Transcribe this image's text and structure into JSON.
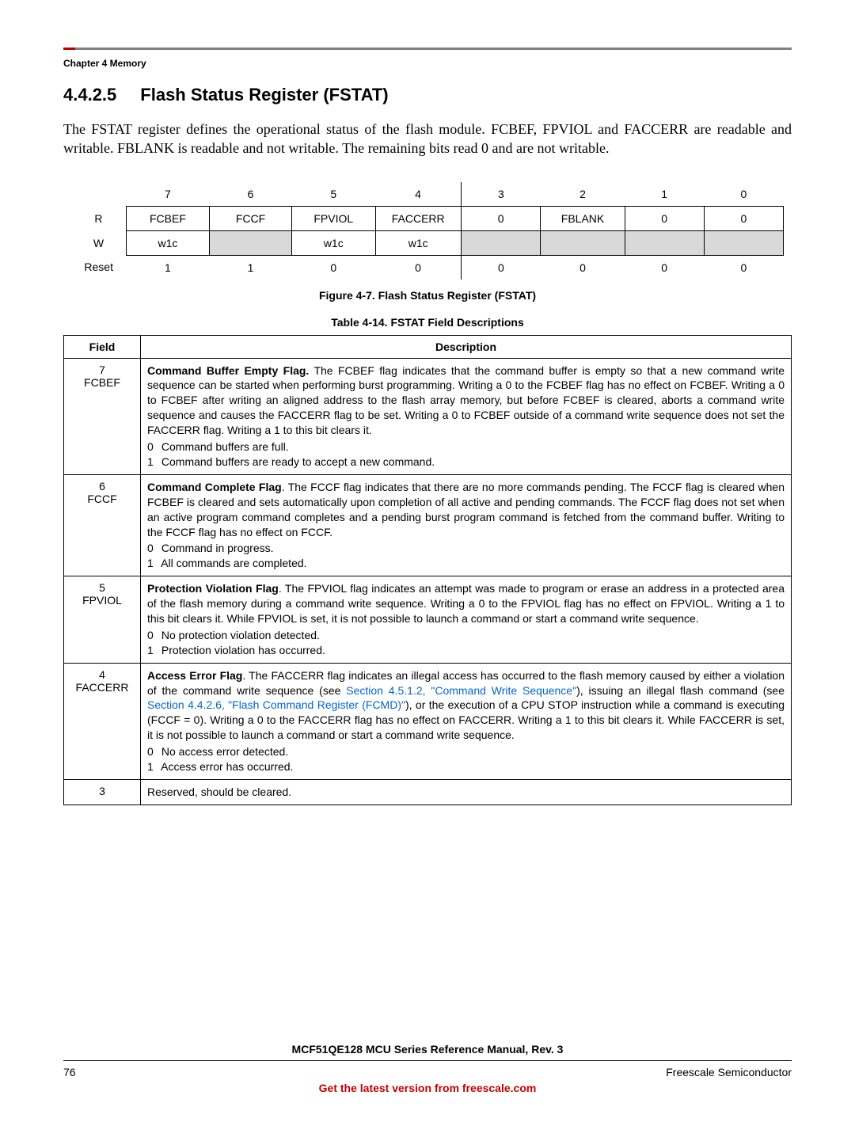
{
  "header": {
    "chapter_label": "Chapter 4 Memory"
  },
  "section": {
    "number": "4.4.2.5",
    "title": "Flash Status Register (FSTAT)"
  },
  "intro_paragraph": "The FSTAT register defines the operational status of the flash module. FCBEF, FPVIOL and FACCERR are readable and writable. FBLANK is readable and not writable. The remaining bits read 0 and are not writable.",
  "register": {
    "bit_numbers": [
      "7",
      "6",
      "5",
      "4",
      "3",
      "2",
      "1",
      "0"
    ],
    "row_labels": {
      "r": "R",
      "w": "W",
      "reset": "Reset"
    },
    "read_row": [
      "FCBEF",
      "FCCF",
      "FPVIOL",
      "FACCERR",
      "0",
      "FBLANK",
      "0",
      "0"
    ],
    "write_row": [
      "w1c",
      "",
      "w1c",
      "w1c",
      "",
      "",
      "",
      ""
    ],
    "write_shaded": [
      false,
      true,
      false,
      false,
      true,
      true,
      true,
      true
    ],
    "reset_row": [
      "1",
      "1",
      "0",
      "0",
      "0",
      "0",
      "0",
      "0"
    ]
  },
  "figure_caption": "Figure 4-7. Flash Status Register (FSTAT)",
  "table_caption": "Table 4-14. FSTAT Field Descriptions",
  "desc_table": {
    "headers": {
      "field": "Field",
      "description": "Description"
    },
    "rows": [
      {
        "field_num": "7",
        "field_name": "FCBEF",
        "bold_lead": "Command Buffer Empty Flag.",
        "desc_text": " The FCBEF flag indicates that the command buffer is empty so that a new command write sequence can be started when performing burst programming. Writing a 0 to the FCBEF flag has no effect on FCBEF. Writing a 0 to FCBEF after writing an aligned address to the flash array memory, but before FCBEF is cleared, aborts a command write sequence and causes the FACCERR flag to be set. Writing a 0 to FCBEF outside of a command write sequence does not set the FACCERR flag. Writing a 1 to this bit clears it.",
        "bits": [
          {
            "n": "0",
            "t": "Command buffers are full."
          },
          {
            "n": "1",
            "t": "Command buffers are ready to accept a new command."
          }
        ]
      },
      {
        "field_num": "6",
        "field_name": "FCCF",
        "bold_lead": "Command Complete Flag",
        "desc_text": ". The FCCF flag indicates that there are no more commands pending. The FCCF flag is cleared when FCBEF is cleared and sets automatically upon completion of all active and pending commands. The FCCF flag does not set when an active program command completes and a pending burst program command is fetched from the command buffer. Writing to the FCCF flag has no effect on FCCF.",
        "bits": [
          {
            "n": "0",
            "t": "Command in progress."
          },
          {
            "n": "1",
            "t": "All commands are completed."
          }
        ]
      },
      {
        "field_num": "5",
        "field_name": "FPVIOL",
        "bold_lead": "Protection Violation Flag",
        "desc_text": ". The FPVIOL flag indicates an attempt was made to program or erase an address in a protected area of the flash memory during a command write sequence. Writing a 0 to the FPVIOL flag has no effect on FPVIOL. Writing a 1 to this bit clears it. While FPVIOL is set, it is not possible to launch a command or start a command write sequence.",
        "bits": [
          {
            "n": "0",
            "t": "No protection violation detected."
          },
          {
            "n": "1",
            "t": "Protection violation has occurred."
          }
        ]
      },
      {
        "field_num": "4",
        "field_name": "FACCERR",
        "bold_lead": "Access Error Flag",
        "desc_text_pre": ". The FACCERR flag indicates an illegal access has occurred to the flash memory caused by either a violation of the command write sequence (see ",
        "link1": "Section 4.5.1.2, \"Command Write Sequence\"",
        "desc_text_mid": "), issuing an illegal flash command (see ",
        "link2": "Section 4.4.2.6, \"Flash Command Register (FCMD)\"",
        "desc_text_post": "), or the execution of a CPU STOP instruction while a command is executing (FCCF = 0). Writing a 0 to the FACCERR flag has no effect on FACCERR. Writing a 1 to this bit clears it. While FACCERR is set, it is not possible to launch a command or start a command write sequence.",
        "bits": [
          {
            "n": "0",
            "t": "No access error detected."
          },
          {
            "n": "1",
            "t": "Access error has occurred."
          }
        ]
      },
      {
        "field_num": "3",
        "field_name": "",
        "plain_desc": "Reserved, should be cleared."
      }
    ]
  },
  "footer": {
    "manual_title": "MCF51QE128 MCU Series Reference Manual, Rev. 3",
    "page_number": "76",
    "company": "Freescale Semiconductor",
    "link_text": "Get the latest version from freescale.com"
  }
}
